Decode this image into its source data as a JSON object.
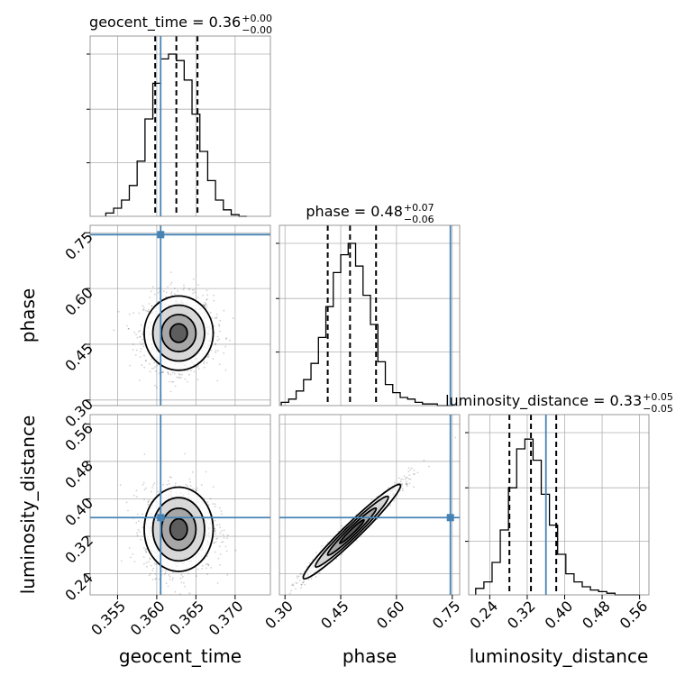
{
  "chart_data": {
    "type": "corner",
    "parameters": [
      "geocent_time",
      "phase",
      "luminosity_distance"
    ],
    "truths": {
      "geocent_time": 0.3605,
      "phase": 0.745,
      "luminosity_distance": 0.36
    },
    "titles": {
      "geocent_time": {
        "prefix": "geocent_time = 0.36",
        "plus": "+0.00",
        "minus": "−0.00"
      },
      "phase": {
        "prefix": "phase = 0.48",
        "plus": "+0.07",
        "minus": "−0.06"
      },
      "luminosity_distance": {
        "prefix": "luminosity_distance = 0.33",
        "plus": "+0.05",
        "minus": "−0.05"
      }
    },
    "axes": {
      "geocent_time": {
        "range": [
          0.3515,
          0.3745
        ],
        "ticks": [
          "0.355",
          "0.360",
          "0.365",
          "0.370"
        ],
        "tick_values": [
          0.355,
          0.36,
          0.365,
          0.37
        ]
      },
      "phase": {
        "range": [
          0.285,
          0.77
        ],
        "ticks": [
          "0.30",
          "0.45",
          "0.60",
          "0.75"
        ],
        "tick_values": [
          0.3,
          0.45,
          0.6,
          0.75
        ]
      },
      "luminosity_distance": {
        "range": [
          0.195,
          0.58
        ],
        "ticks": [
          "0.24",
          "0.32",
          "0.40",
          "0.48",
          "0.56"
        ],
        "tick_values": [
          0.24,
          0.32,
          0.4,
          0.48,
          0.56
        ]
      }
    },
    "histograms": {
      "geocent_time": {
        "edges_start": 0.3535,
        "bin_width": 0.001,
        "counts": [
          0.02,
          0.05,
          0.1,
          0.19,
          0.34,
          0.6,
          0.82,
          0.97,
          1.0,
          0.96,
          0.84,
          0.63,
          0.4,
          0.22,
          0.1,
          0.04,
          0.01,
          0.0
        ]
      },
      "phase": {
        "edges_start": 0.29,
        "bin_width": 0.02,
        "counts": [
          0.02,
          0.04,
          0.09,
          0.16,
          0.26,
          0.42,
          0.61,
          0.82,
          0.93,
          1.0,
          0.86,
          0.68,
          0.5,
          0.27,
          0.13,
          0.08,
          0.05,
          0.04,
          0.02,
          0.01,
          0.01,
          0.0,
          0.0
        ]
      },
      "luminosity_distance": {
        "edges_start": 0.21,
        "bin_width": 0.0175,
        "counts": [
          0.04,
          0.08,
          0.2,
          0.4,
          0.66,
          0.9,
          0.96,
          0.83,
          0.62,
          0.43,
          0.25,
          0.13,
          0.08,
          0.05,
          0.03,
          0.02,
          0.01,
          0.0,
          0.0,
          0.0
        ]
      }
    },
    "quantiles": {
      "geocent_time": [
        0.3598,
        0.3625,
        0.3652
      ],
      "phase": [
        0.415,
        0.475,
        0.545
      ],
      "luminosity_distance": [
        0.282,
        0.328,
        0.382
      ]
    },
    "pairs": [
      {
        "x": "geocent_time",
        "y": "phase",
        "center": [
          0.3628,
          0.48
        ],
        "spread": [
          0.0022,
          0.05
        ],
        "rho": 0.0
      },
      {
        "x": "geocent_time",
        "y": "luminosity_distance",
        "center": [
          0.3628,
          0.335
        ],
        "spread": [
          0.0022,
          0.045
        ],
        "rho": 0.0
      },
      {
        "x": "phase",
        "y": "luminosity_distance",
        "center": [
          0.48,
          0.33
        ],
        "spread": [
          0.065,
          0.05
        ],
        "rho": 0.98
      }
    ],
    "xlabels": [
      "geocent_time",
      "phase",
      "luminosity_distance"
    ],
    "ylabels": [
      "phase",
      "luminosity_distance"
    ],
    "colors": {
      "truth": "#4682b4",
      "hist": "#000000",
      "grid": "#b0b0b0"
    }
  }
}
